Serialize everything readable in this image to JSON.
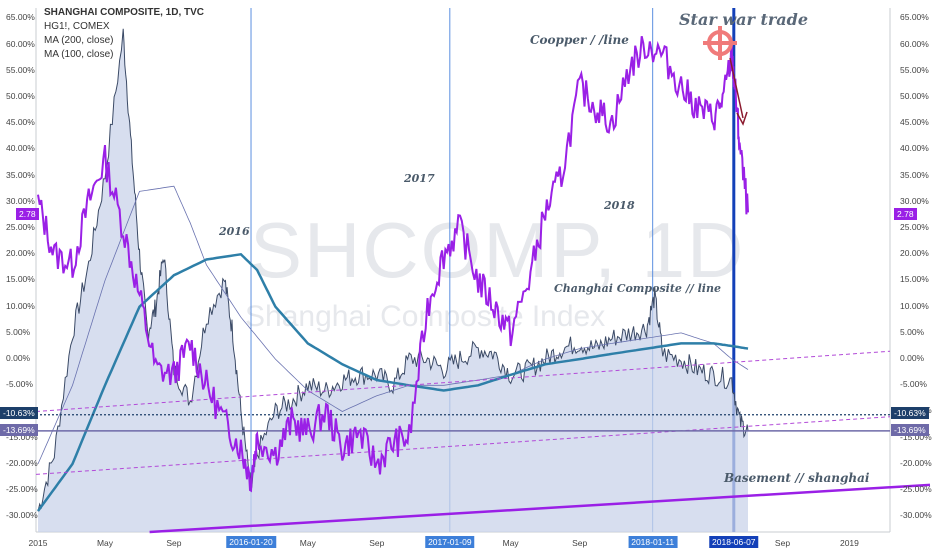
{
  "legend": {
    "title": "SHANGHAI COMPOSITE, 1D, TVC",
    "line2": "HG1!, COMEX",
    "line3": "MA (200, close)",
    "line4": "MA (100, close)"
  },
  "watermark": {
    "symbol": "SHCOMP, 1D",
    "name": "Shanghai Composite Index"
  },
  "annotations": {
    "star_war": "Star war trade",
    "copper_line": "Coopper / /line",
    "shanghai_line": "Changhai Composite // line",
    "basement": "Basement // shanghai",
    "y2016": "2016",
    "y2017": "2017",
    "y2018": "2018"
  },
  "price_tags": {
    "current": "2.78",
    "level_a": "-10.63%",
    "level_b": "-13.69%"
  },
  "colors": {
    "shcomp_line": "#3b4a66",
    "shcomp_fill": "#c9d3ea",
    "copper": "#9a20e6",
    "ma200": "#2e7fa8",
    "ma100": "#6a73b0",
    "vline": "#5b8fe0",
    "vline_thick": "#1340b8",
    "basement": "#9a20e6",
    "dotted": "#1d3f6a",
    "level_b_line": "#6e6aa8"
  },
  "chart_data": {
    "type": "line",
    "title": "SHANGHAI COMPOSITE, 1D, TVC",
    "ylim": [
      -33,
      67
    ],
    "y_ticks": [
      65,
      60,
      55,
      50,
      45,
      40,
      35,
      30,
      25,
      20,
      15,
      10,
      5,
      0,
      -5,
      -10,
      -15,
      -20,
      -25,
      -30
    ],
    "y_tick_labels": [
      "65.00%",
      "60.00%",
      "55.00%",
      "50.00%",
      "45.00%",
      "40.00%",
      "35.00%",
      "30.00%",
      "25.00%",
      "20.00%",
      "15.00%",
      "10.00%",
      "5.00%",
      "0.00%",
      "-5.00%",
      "-10.00%",
      "-15.00%",
      "-20.00%",
      "-25.00%",
      "-30.00%"
    ],
    "x_ticks": [
      {
        "t": 2015.0,
        "label": "2015"
      },
      {
        "t": 2015.33,
        "label": "May"
      },
      {
        "t": 2015.67,
        "label": "Sep"
      },
      {
        "t": 2016.33,
        "label": "May"
      },
      {
        "t": 2016.67,
        "label": "Sep"
      },
      {
        "t": 2017.33,
        "label": "May"
      },
      {
        "t": 2017.67,
        "label": "Sep"
      },
      {
        "t": 2018.67,
        "label": "Sep"
      },
      {
        "t": 2019.0,
        "label": "2019"
      }
    ],
    "vertical_markers": [
      {
        "t": 2016.05,
        "label": "2016-01-20"
      },
      {
        "t": 2017.03,
        "label": "2017-01-09"
      },
      {
        "t": 2018.03,
        "label": "2018-01-11"
      },
      {
        "t": 2018.43,
        "label": "2018-06-07",
        "thick": true
      }
    ],
    "series": [
      {
        "name": "SHANGHAI COMPOSITE",
        "x": [
          2015.0,
          2015.08,
          2015.17,
          2015.25,
          2015.33,
          2015.42,
          2015.46,
          2015.5,
          2015.54,
          2015.58,
          2015.62,
          2015.67,
          2015.75,
          2015.83,
          2015.92,
          2015.96,
          2016.0,
          2016.05,
          2016.08,
          2016.17,
          2016.25,
          2016.33,
          2016.42,
          2016.5,
          2016.58,
          2016.67,
          2016.75,
          2016.83,
          2016.92,
          2017.0,
          2017.08,
          2017.17,
          2017.25,
          2017.33,
          2017.42,
          2017.5,
          2017.58,
          2017.67,
          2017.75,
          2017.83,
          2017.92,
          2018.0,
          2018.04,
          2018.08,
          2018.17,
          2018.25,
          2018.33,
          2018.42,
          2018.46,
          2018.5
        ],
        "values": [
          -29,
          -18,
          5,
          18,
          35,
          62,
          40,
          20,
          5,
          10,
          20,
          -2,
          -8,
          8,
          15,
          5,
          -10,
          -25,
          -18,
          -10,
          -8,
          -5,
          -6,
          -4,
          -3,
          -3,
          -5,
          0,
          0,
          -2,
          0,
          2,
          1,
          -3,
          -2,
          0,
          2,
          3,
          2,
          4,
          5,
          6,
          12,
          1,
          0,
          -2,
          -3,
          -4,
          -12,
          -13.7
        ]
      },
      {
        "name": "HG1!, COMEX",
        "x": [
          2015.0,
          2015.08,
          2015.17,
          2015.25,
          2015.33,
          2015.42,
          2015.5,
          2015.58,
          2015.67,
          2015.75,
          2015.83,
          2015.92,
          2016.0,
          2016.05,
          2016.08,
          2016.17,
          2016.25,
          2016.33,
          2016.42,
          2016.5,
          2016.58,
          2016.67,
          2016.75,
          2016.83,
          2016.92,
          2017.0,
          2017.08,
          2017.17,
          2017.25,
          2017.33,
          2017.42,
          2017.5,
          2017.58,
          2017.67,
          2017.75,
          2017.83,
          2017.92,
          2018.0,
          2018.08,
          2018.17,
          2018.25,
          2018.33,
          2018.38,
          2018.42,
          2018.44,
          2018.46,
          2018.5
        ],
        "values": [
          30,
          20,
          18,
          30,
          38,
          25,
          12,
          -2,
          -3,
          3,
          -5,
          -12,
          -17,
          -23,
          -15,
          -18,
          -12,
          -14,
          -10,
          -17,
          -14,
          -20,
          -16,
          -15,
          10,
          20,
          25,
          15,
          10,
          5,
          15,
          28,
          35,
          52,
          48,
          45,
          56,
          60,
          58,
          52,
          48,
          46,
          50,
          58,
          50,
          40,
          28
        ]
      },
      {
        "name": "MA (200, close)",
        "x": [
          2015.0,
          2015.17,
          2015.33,
          2015.5,
          2015.67,
          2015.83,
          2016.0,
          2016.08,
          2016.17,
          2016.33,
          2016.5,
          2016.67,
          2016.83,
          2017.0,
          2017.17,
          2017.33,
          2017.5,
          2017.67,
          2017.83,
          2018.0,
          2018.17,
          2018.33,
          2018.42,
          2018.5
        ],
        "values": [
          -29,
          -20,
          -5,
          10,
          16,
          19,
          20,
          17,
          10,
          3,
          -1,
          -4,
          -5,
          -6,
          -5,
          -3,
          -1,
          0,
          1,
          2,
          3,
          3,
          2.5,
          2
        ]
      },
      {
        "name": "MA (100, close)",
        "x": [
          2015.0,
          2015.17,
          2015.33,
          2015.5,
          2015.67,
          2015.75,
          2015.83,
          2016.0,
          2016.17,
          2016.33,
          2016.5,
          2016.67,
          2016.83,
          2017.0,
          2017.17,
          2017.33,
          2017.5,
          2017.67,
          2017.83,
          2018.0,
          2018.17,
          2018.33,
          2018.42,
          2018.5
        ],
        "values": [
          -20,
          -5,
          15,
          32,
          33,
          26,
          18,
          8,
          0,
          -6,
          -10,
          -7,
          -5,
          -5,
          -4,
          -3,
          0,
          2,
          3,
          4,
          5,
          3,
          0,
          -2
        ]
      }
    ]
  }
}
